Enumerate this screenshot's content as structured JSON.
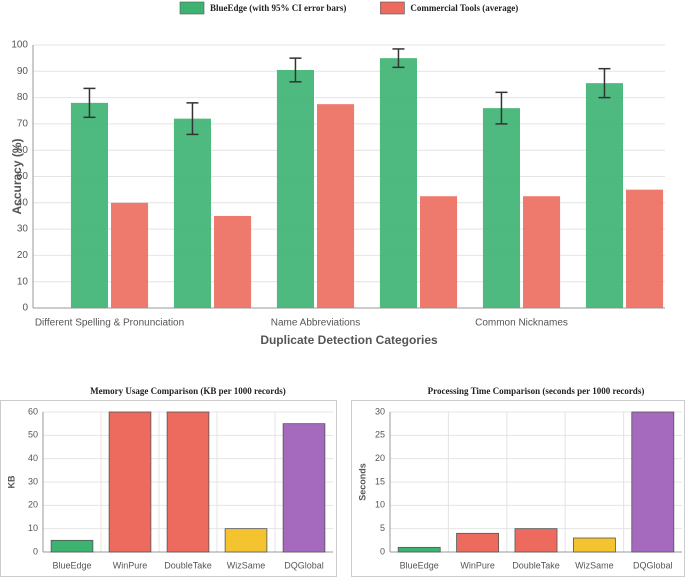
{
  "chart_data": [
    {
      "type": "bar",
      "categories": [
        "Different Spelling & Pronunciation",
        null,
        "Name Abbreviations",
        null,
        "Common Nicknames",
        null
      ],
      "series": [
        {
          "name": "BlueEdge (with 95% CI error bars)",
          "color": "#3cb371",
          "values": [
            78,
            72,
            90.5,
            95,
            76,
            85.5
          ],
          "errors": [
            5.5,
            6,
            4.5,
            3.5,
            6,
            5.5
          ]
        },
        {
          "name": "Commercial Tools (average)",
          "color": "#ec6b5e",
          "values": [
            40,
            35,
            77.5,
            42.5,
            42.5,
            45
          ]
        }
      ],
      "ylabel": "Accuracy (%)",
      "xlabel": "Duplicate Detection Categories",
      "ylim": [
        0,
        100
      ],
      "yticks": [
        0,
        10,
        20,
        30,
        40,
        50,
        60,
        70,
        80,
        90,
        100
      ],
      "grid": true,
      "legend": "top"
    },
    {
      "type": "bar",
      "title": "Memory Usage Comparison (KB per 1000 records)",
      "categories": [
        "BlueEdge",
        "WinPure",
        "DoubleTake",
        "WizSame",
        "DQGlobal"
      ],
      "values": [
        5,
        60,
        60,
        10,
        55
      ],
      "colors": [
        "#3cb371",
        "#ec6b5e",
        "#ec6b5e",
        "#f4c430",
        "#a569bd"
      ],
      "ylabel": "KB",
      "ylim": [
        0,
        60
      ],
      "yticks": [
        0,
        10,
        20,
        30,
        40,
        50,
        60
      ],
      "grid": true
    },
    {
      "type": "bar",
      "title": "Processing Time Comparison (seconds per 1000 records)",
      "categories": [
        "BlueEdge",
        "WinPure",
        "DoubleTake",
        "WizSame",
        "DQGlobal"
      ],
      "values": [
        1,
        4,
        5,
        3,
        30
      ],
      "colors": [
        "#3cb371",
        "#ec6b5e",
        "#ec6b5e",
        "#f4c430",
        "#a569bd"
      ],
      "ylabel": "Seconds",
      "ylim": [
        0,
        30
      ],
      "yticks": [
        0,
        5,
        10,
        15,
        20,
        25,
        30
      ],
      "grid": true
    }
  ]
}
